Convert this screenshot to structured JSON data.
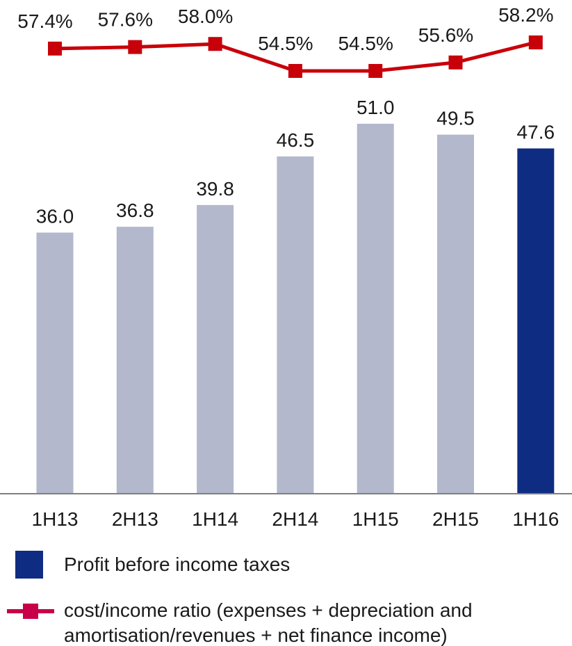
{
  "chart_data": {
    "type": "bar",
    "categories": [
      "1H13",
      "2H13",
      "1H14",
      "2H14",
      "1H15",
      "2H15",
      "1H16"
    ],
    "series": [
      {
        "name": "Profit before income taxes",
        "kind": "bar",
        "values": [
          36.0,
          36.8,
          39.8,
          46.5,
          51.0,
          49.5,
          47.6
        ],
        "labels": [
          "36.0",
          "36.8",
          "39.8",
          "46.5",
          "51.0",
          "49.5",
          "47.6"
        ]
      },
      {
        "name": "cost/income ratio (expenses + depreciation and amortisation/revenues + net finance income)",
        "kind": "line",
        "values": [
          57.4,
          57.6,
          58.0,
          54.5,
          54.5,
          55.6,
          58.2
        ],
        "labels": [
          "57.4%",
          "57.6%",
          "58.0%",
          "54.5%",
          "54.5%",
          "55.6%",
          "58.2%"
        ]
      }
    ],
    "ylim_bars": [
      0,
      60
    ],
    "ylim_line": [
      50,
      60
    ],
    "grid": false,
    "legend_placement": "bottom"
  },
  "legend": {
    "bar_label": "Profit before income taxes",
    "line_label": "cost/income ratio (expenses + depreciation and amortisation/revenues + net finance income)"
  },
  "colors": {
    "bar_default": "#b3b8cc",
    "bar_highlight": "#0e2d82",
    "line": "#c8000a",
    "legend_line_marker": "#c8004a",
    "axis": "#7f7f7f",
    "text": "#1a1a1a"
  }
}
